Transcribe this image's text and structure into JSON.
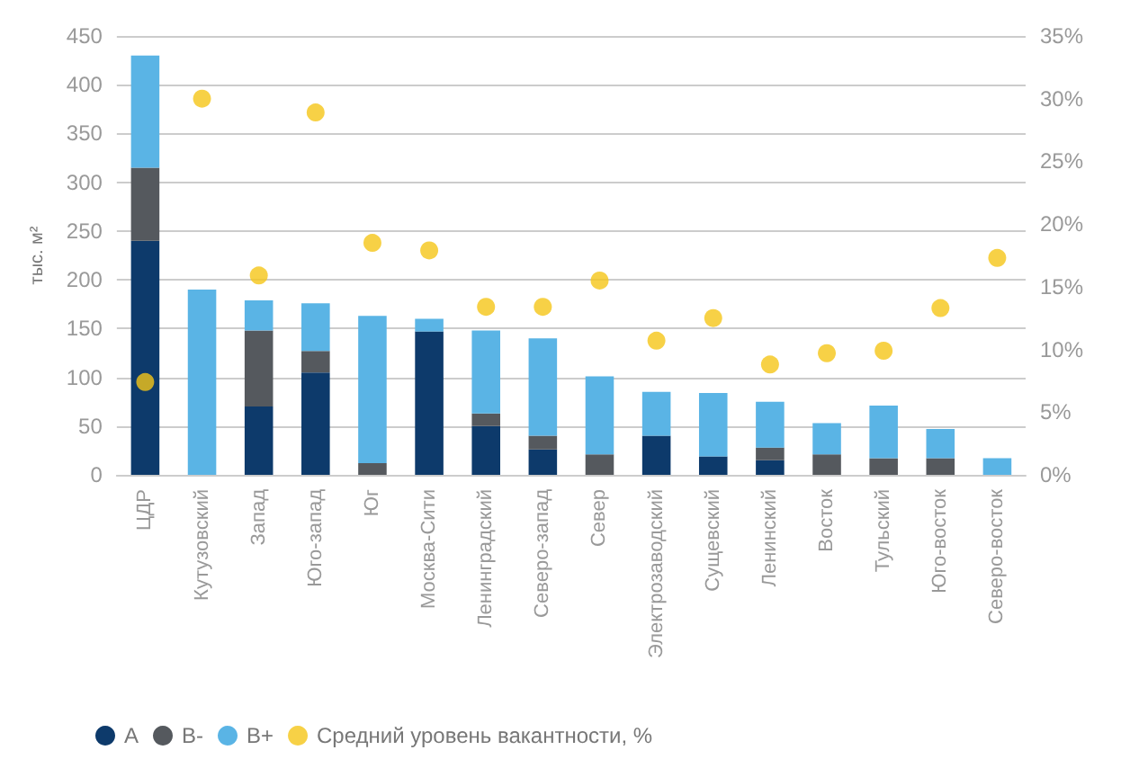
{
  "chart_data": {
    "type": "bar",
    "stacked": true,
    "ylabel": "тыс. м²",
    "categories": [
      "ЦДР",
      "Кутузовский",
      "Запад",
      "Юго-запад",
      "Юг",
      "Москва-Сити",
      "Ленинградский",
      "Северо-запад",
      "Север",
      "Электрозаводский",
      "Сущевский",
      "Ленинский",
      "Восток",
      "Тульский",
      "Юго-восток",
      "Северо-восток"
    ],
    "series": [
      {
        "name": "A",
        "color": "#0d3a6b",
        "values": [
          240,
          0,
          70,
          105,
          0,
          147,
          50,
          26,
          0,
          40,
          19,
          15,
          0,
          0,
          0,
          0
        ]
      },
      {
        "name": "B-",
        "color": "#55595e",
        "values": [
          75,
          0,
          78,
          22,
          12,
          0,
          13,
          14,
          21,
          0,
          0,
          13,
          21,
          17,
          17,
          0
        ]
      },
      {
        "name": "B+",
        "color": "#5ab4e5",
        "values": [
          115,
          190,
          31,
          49,
          151,
          13,
          85,
          100,
          80,
          45,
          65,
          47,
          32,
          54,
          30,
          17
        ]
      },
      {
        "name": "Средний уровень вакантности, %",
        "type": "scatter",
        "axis": "y2",
        "color": "#f5c518",
        "values": [
          7.4,
          30,
          15.9,
          28.9,
          18.5,
          17.9,
          13.4,
          13.4,
          15.5,
          10.7,
          12.5,
          8.8,
          9.7,
          9.9,
          13.3,
          17.3
        ]
      }
    ],
    "ylim": [
      0,
      450
    ],
    "yticks": [
      0,
      50,
      100,
      150,
      200,
      250,
      300,
      350,
      400,
      450
    ],
    "y2lim": [
      0,
      35
    ],
    "y2ticks": [
      {
        "value": 0,
        "label": "0%"
      },
      {
        "value": 5,
        "label": "5%"
      },
      {
        "value": 10,
        "label": "10%"
      },
      {
        "value": 15,
        "label": "15%"
      },
      {
        "value": 20,
        "label": "20%"
      },
      {
        "value": 25,
        "label": "25%"
      },
      {
        "value": 30,
        "label": "30%"
      },
      {
        "value": 35,
        "label": "35%"
      }
    ],
    "grid": "y",
    "legend": "bottom",
    "marker": "circle"
  }
}
